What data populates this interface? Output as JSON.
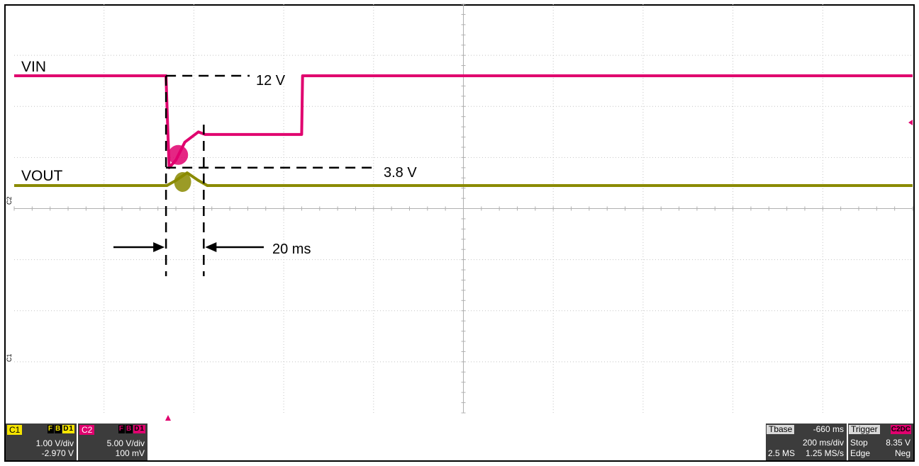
{
  "chart_data": {
    "type": "line",
    "title": "",
    "xlabel": "",
    "ylabel": "",
    "grid": true,
    "x_divisions": 10,
    "y_divisions": 8,
    "time_per_div_ms": 200,
    "series": [
      {
        "name": "VIN",
        "color": "#e0006e",
        "x_ms": [
          0,
          338,
          342,
          345,
          360,
          380,
          410,
          425,
          430,
          640,
          642,
          2000
        ],
        "y_div": [
          6.6,
          6.6,
          5.5,
          4.8,
          4.95,
          5.3,
          5.5,
          5.45,
          5.45,
          5.45,
          6.6,
          6.6
        ]
      },
      {
        "name": "VOUT",
        "color": "#8a8a00",
        "x_ms": [
          0,
          340,
          360,
          385,
          410,
          430,
          2000
        ],
        "y_div": [
          4.45,
          4.45,
          4.55,
          4.7,
          4.55,
          4.45,
          4.45
        ]
      }
    ],
    "annotations": [
      {
        "text": "VIN",
        "role": "trace-label"
      },
      {
        "text": "VOUT",
        "role": "trace-label"
      },
      {
        "text": "12 V",
        "role": "level"
      },
      {
        "text": "3.8 V",
        "role": "level"
      },
      {
        "text": "20 ms",
        "role": "interval"
      }
    ],
    "level_values_V": {
      "vin": 12,
      "vout": 3.8
    },
    "interval_ms": 20
  },
  "channels": [
    {
      "tag": "C1",
      "fbd": [
        "F",
        "B",
        "D1"
      ],
      "scale": "1.00 V/div",
      "offset": "-2.970 V",
      "color": "#f5e400"
    },
    {
      "tag": "C2",
      "fbd": [
        "F",
        "B",
        "D1"
      ],
      "scale": "5.00 V/div",
      "offset": "100 mV",
      "color": "#e0006e"
    }
  ],
  "marker_labels": {
    "c1": "C1",
    "c2": "C2"
  },
  "timebase": {
    "label": "Tbase",
    "delay": "-660 ms",
    "per_div": "200 ms/div",
    "samples": "2.5 MS",
    "rate": "1.25 MS/s"
  },
  "trigger": {
    "label": "Trigger",
    "tags": "C2DC",
    "mode": "Stop",
    "level": "8.35 V",
    "type": "Edge",
    "slope": "Neg"
  }
}
